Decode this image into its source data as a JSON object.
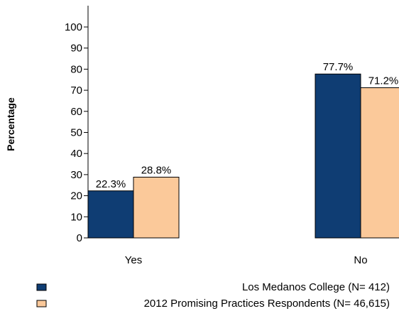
{
  "chart_data": {
    "type": "bar",
    "title": "",
    "xlabel": "",
    "ylabel": "Percentage",
    "ylim": [
      0,
      100
    ],
    "yticks": [
      0,
      10,
      20,
      30,
      40,
      50,
      60,
      70,
      80,
      90,
      100
    ],
    "categories": [
      "Yes",
      "No"
    ],
    "series": [
      {
        "name": "Los Medanos College  (N= 412)",
        "values": [
          22.3,
          77.7
        ],
        "labels": [
          "22.3%",
          "77.7%"
        ],
        "color": "#0f3d73"
      },
      {
        "name": "2012 Promising Practices Respondents (N= 46,615)",
        "values": [
          28.8,
          71.2
        ],
        "labels": [
          "28.8%",
          "71.2%"
        ],
        "color": "#fbc99a"
      }
    ],
    "grid": false,
    "legend_position": "bottom"
  }
}
